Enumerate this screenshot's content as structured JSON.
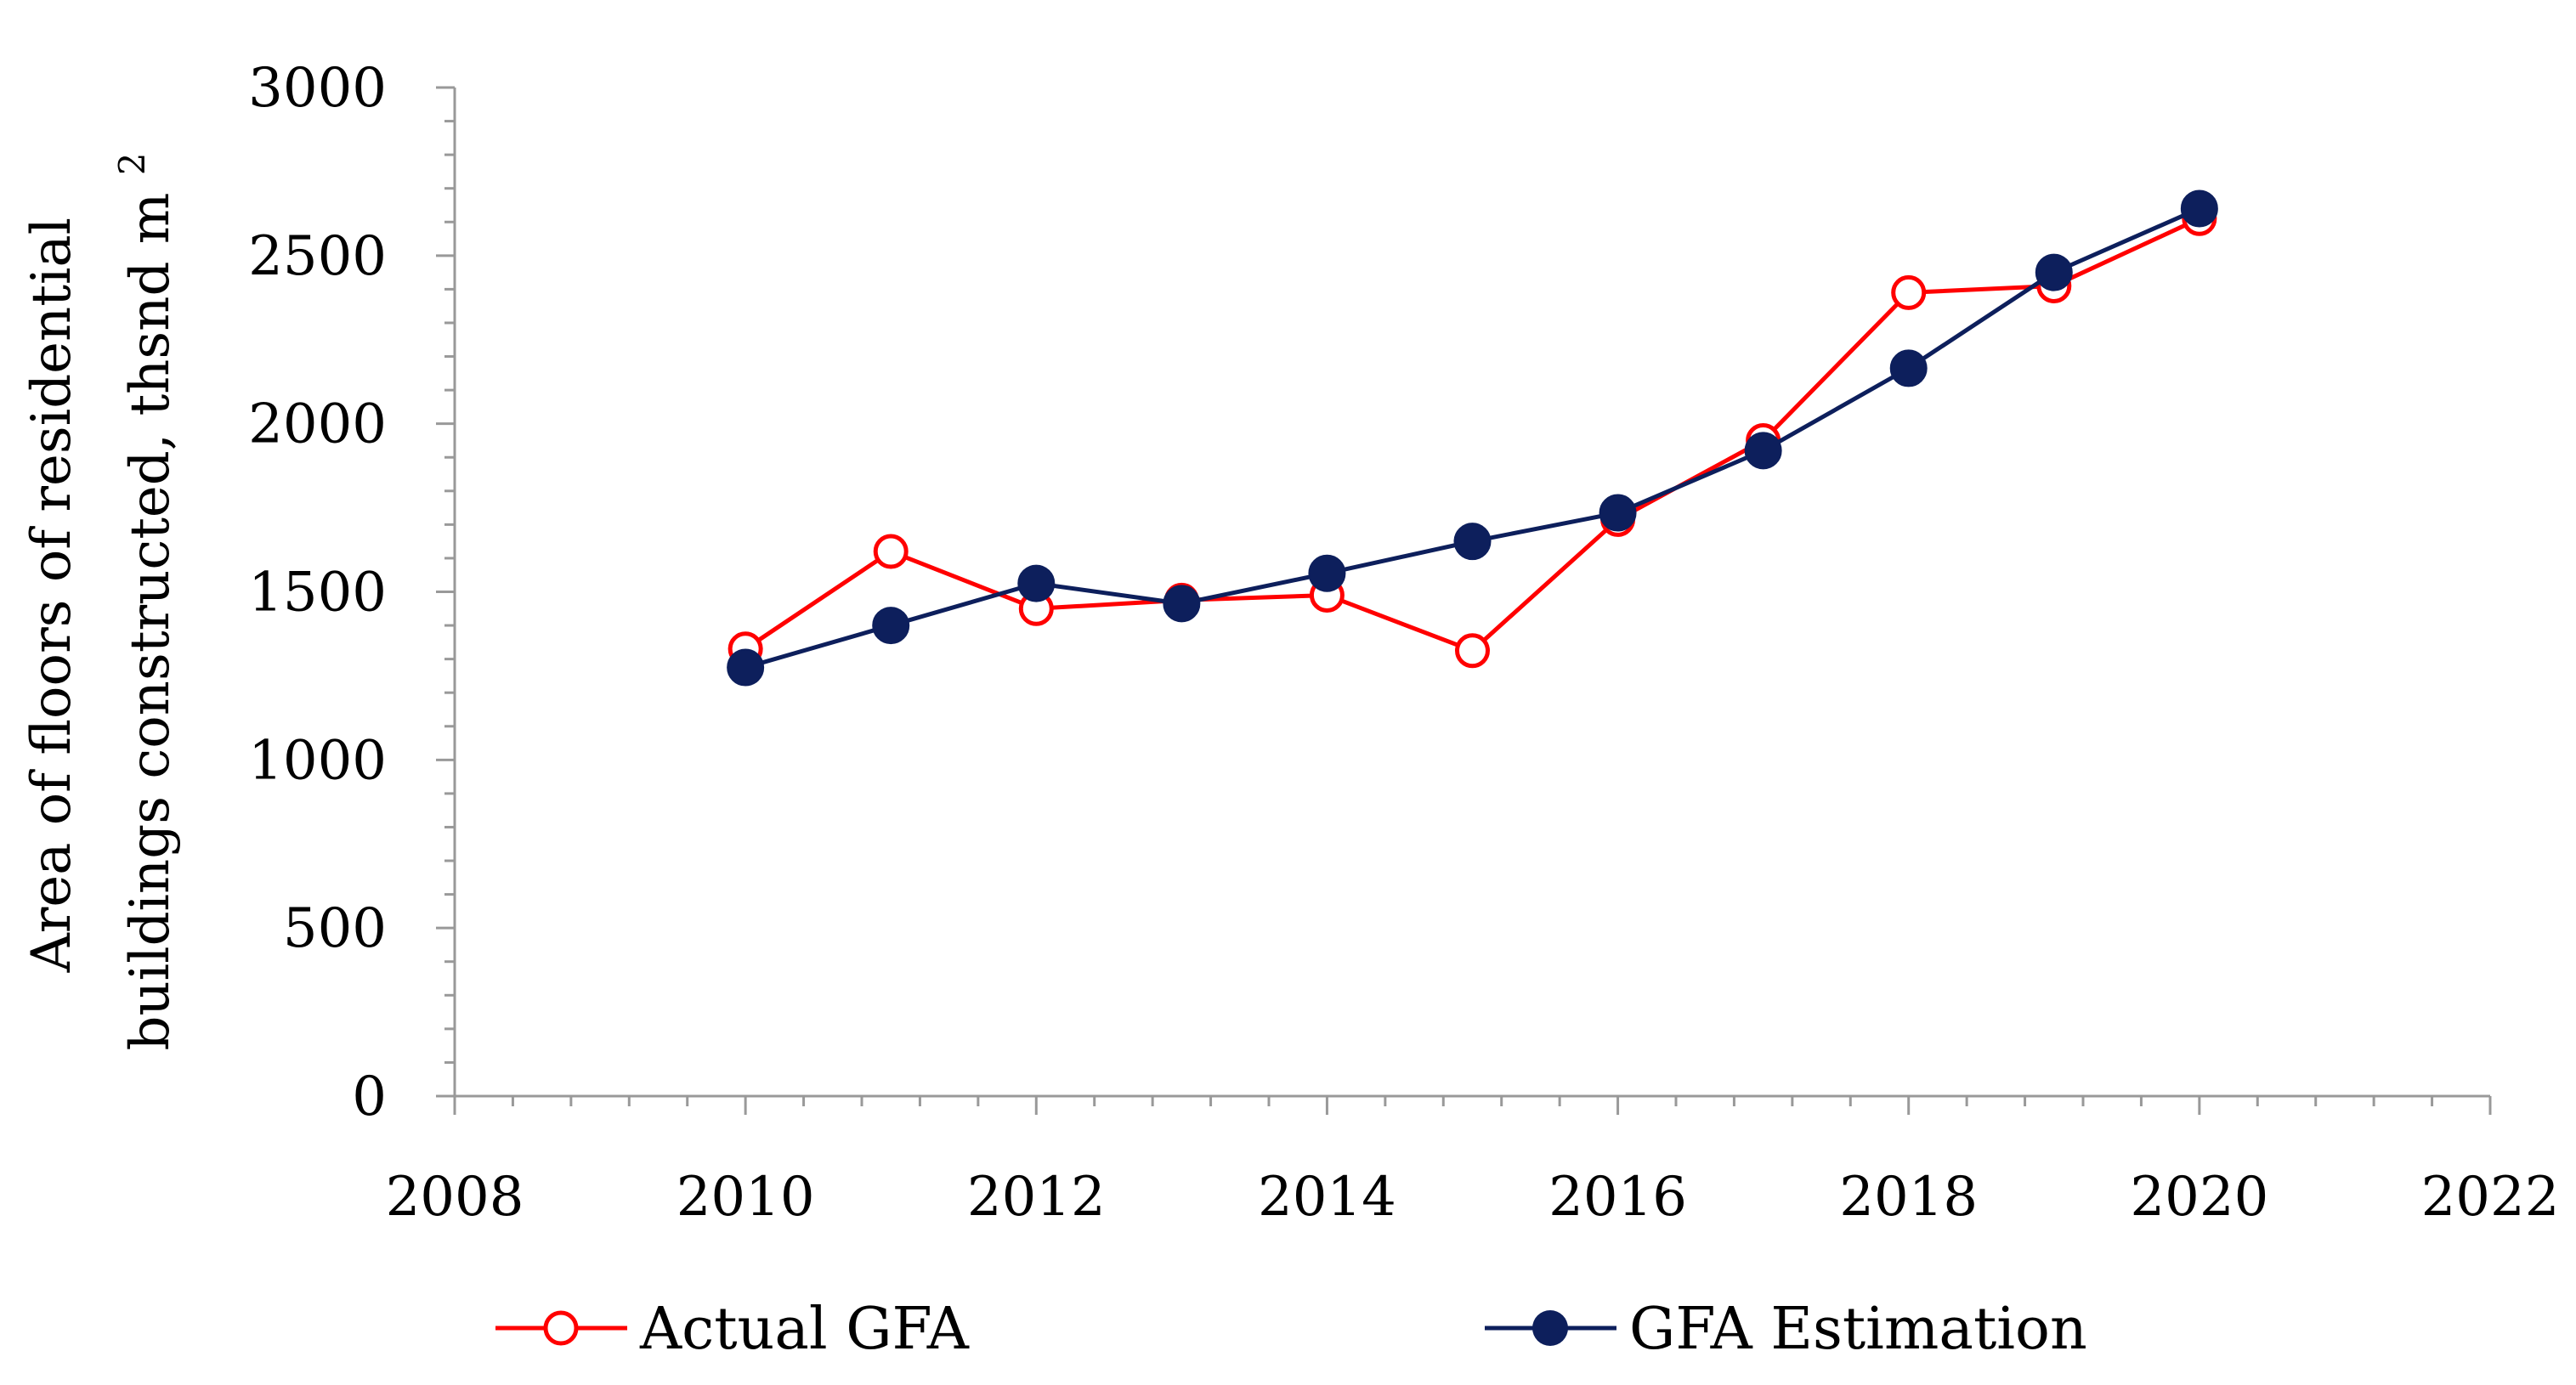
{
  "chart_data": {
    "type": "line",
    "title": "",
    "xlabel": "",
    "ylabel_line1": "Area of floors of residential",
    "ylabel_line2": "buildings constructed, thsnd m",
    "ylabel_superscript": "2",
    "xlim": [
      2008,
      2022
    ],
    "ylim": [
      0,
      3000
    ],
    "xticks": [
      2008,
      2010,
      2012,
      2014,
      2016,
      2018,
      2020,
      2022
    ],
    "yticks": [
      0,
      500,
      1000,
      1500,
      2000,
      2500,
      3000
    ],
    "grid": false,
    "legend_position": "bottom",
    "series": [
      {
        "name": "Actual GFA",
        "color": "#ff0000",
        "marker": "open-circle",
        "x": [
          2010,
          2011,
          2012,
          2013,
          2014,
          2015,
          2016,
          2017,
          2018,
          2019,
          2020
        ],
        "values": [
          1330,
          1620,
          1450,
          1475,
          1490,
          1325,
          1715,
          1950,
          2390,
          2410,
          2610
        ]
      },
      {
        "name": "GFA Estimation",
        "color": "#0d1f5c",
        "marker": "filled-circle",
        "x": [
          2010,
          2011,
          2012,
          2013,
          2014,
          2015,
          2016,
          2017,
          2018,
          2019,
          2020
        ],
        "values": [
          1275,
          1400,
          1525,
          1465,
          1555,
          1650,
          1735,
          1920,
          2165,
          2450,
          2640
        ]
      }
    ]
  }
}
